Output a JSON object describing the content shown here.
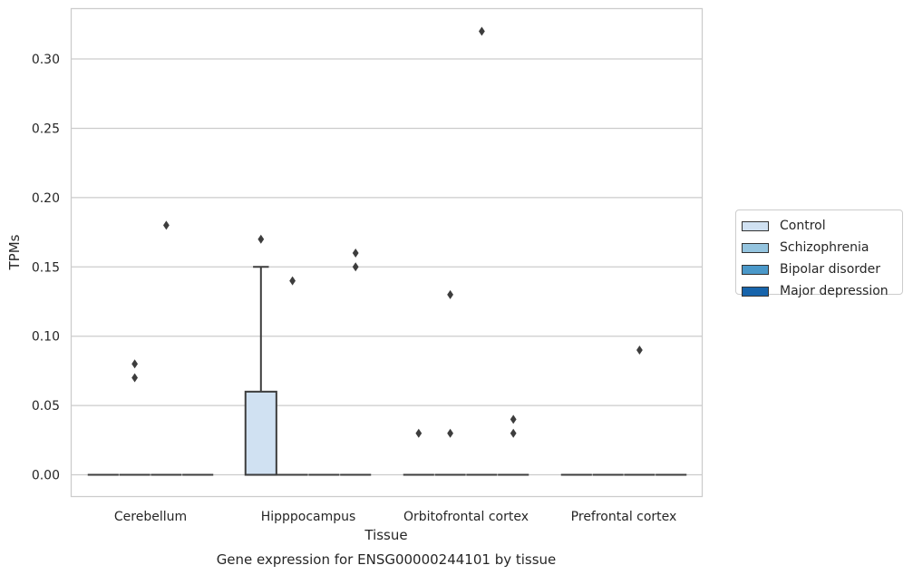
{
  "chart_data": {
    "type": "box",
    "title": "Gene expression for ENSG00000244101 by tissue",
    "xlabel": "Tissue",
    "ylabel": "TPMs",
    "ylim": [
      -0.016,
      0.336
    ],
    "yticks": [
      0.0,
      0.05,
      0.1,
      0.15,
      0.2,
      0.25,
      0.3
    ],
    "ytick_labels": [
      "0.00",
      "0.05",
      "0.10",
      "0.15",
      "0.20",
      "0.25",
      "0.30"
    ],
    "grid": "horizontal",
    "legend_position": "outside-right",
    "categories": [
      "Cerebellum",
      "Hipppocampus",
      "Orbitofrontal cortex",
      "Prefrontal cortex"
    ],
    "series": [
      {
        "name": "Control",
        "color": "#d0e1f2",
        "boxes": [
          {
            "q1": 0,
            "median": 0,
            "q3": 0,
            "whisker_low": 0,
            "whisker_high": 0,
            "outliers": []
          },
          {
            "q1": 0,
            "median": 0,
            "q3": 0.06,
            "whisker_low": 0,
            "whisker_high": 0.15,
            "outliers": [
              0.17
            ]
          },
          {
            "q1": 0,
            "median": 0,
            "q3": 0,
            "whisker_low": 0,
            "whisker_high": 0,
            "outliers": [
              0.03
            ]
          },
          {
            "q1": 0,
            "median": 0,
            "q3": 0,
            "whisker_low": 0,
            "whisker_high": 0,
            "outliers": []
          }
        ]
      },
      {
        "name": "Schizophrenia",
        "color": "#94c4df",
        "boxes": [
          {
            "q1": 0,
            "median": 0,
            "q3": 0,
            "whisker_low": 0,
            "whisker_high": 0,
            "outliers": [
              0.08,
              0.07
            ]
          },
          {
            "q1": 0,
            "median": 0,
            "q3": 0,
            "whisker_low": 0,
            "whisker_high": 0,
            "outliers": [
              0.14
            ]
          },
          {
            "q1": 0,
            "median": 0,
            "q3": 0,
            "whisker_low": 0,
            "whisker_high": 0,
            "outliers": [
              0.13,
              0.03
            ]
          },
          {
            "q1": 0,
            "median": 0,
            "q3": 0,
            "whisker_low": 0,
            "whisker_high": 0,
            "outliers": []
          }
        ]
      },
      {
        "name": "Bipolar disorder",
        "color": "#4a98c9",
        "boxes": [
          {
            "q1": 0,
            "median": 0,
            "q3": 0,
            "whisker_low": 0,
            "whisker_high": 0,
            "outliers": [
              0.18
            ]
          },
          {
            "q1": 0,
            "median": 0,
            "q3": 0,
            "whisker_low": 0,
            "whisker_high": 0,
            "outliers": []
          },
          {
            "q1": 0,
            "median": 0,
            "q3": 0,
            "whisker_low": 0,
            "whisker_high": 0,
            "outliers": [
              0.32
            ]
          },
          {
            "q1": 0,
            "median": 0,
            "q3": 0,
            "whisker_low": 0,
            "whisker_high": 0,
            "outliers": [
              0.09
            ]
          }
        ]
      },
      {
        "name": "Major depression",
        "color": "#1764ab",
        "boxes": [
          {
            "q1": 0,
            "median": 0,
            "q3": 0,
            "whisker_low": 0,
            "whisker_high": 0,
            "outliers": []
          },
          {
            "q1": 0,
            "median": 0,
            "q3": 0,
            "whisker_low": 0,
            "whisker_high": 0,
            "outliers": [
              0.16,
              0.15
            ]
          },
          {
            "q1": 0,
            "median": 0,
            "q3": 0,
            "whisker_low": 0,
            "whisker_high": 0,
            "outliers": [
              0.04,
              0.03
            ]
          },
          {
            "q1": 0,
            "median": 0,
            "q3": 0,
            "whisker_low": 0,
            "whisker_high": 0,
            "outliers": []
          }
        ]
      }
    ]
  }
}
